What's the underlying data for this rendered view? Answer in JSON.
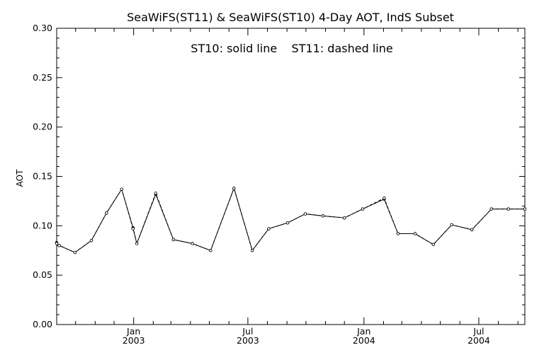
{
  "chart_data": {
    "type": "line",
    "title": "SeaWiFS(ST11) & SeaWiFS(ST10) 4-Day AOT, IndS Subset",
    "ylabel": "AOT",
    "xlabel": "",
    "annotation": "ST10: solid line    ST11: dashed line",
    "ylim": [
      0.0,
      0.3
    ],
    "yticks": [
      "0.00",
      "0.05",
      "0.10",
      "0.15",
      "0.20",
      "0.25",
      "0.30"
    ],
    "xlim": [
      "2002-09-01",
      "2004-09-12"
    ],
    "xticks": [
      {
        "date": "2003-01-01",
        "month": "Jan",
        "year": "2003"
      },
      {
        "date": "2003-07-01",
        "month": "Jul",
        "year": "2003"
      },
      {
        "date": "2004-01-01",
        "month": "Jan",
        "year": "2004"
      },
      {
        "date": "2004-07-01",
        "month": "Jul",
        "year": "2004"
      }
    ],
    "minor_xticks": [
      "2002-10-01",
      "2002-11-01",
      "2002-12-01",
      "2003-02-01",
      "2003-03-01",
      "2003-04-01",
      "2003-05-01",
      "2003-06-01",
      "2003-08-01",
      "2003-09-01",
      "2003-10-01",
      "2003-11-01",
      "2003-12-01",
      "2004-02-01",
      "2004-03-01",
      "2004-04-01",
      "2004-05-01",
      "2004-06-01",
      "2004-08-01",
      "2004-09-01"
    ],
    "grid": false,
    "series": [
      {
        "name": "ST10",
        "style": "solid",
        "color": "#000000",
        "x": [
          "2002-09-01",
          "2002-09-05",
          "2002-09-30",
          "2002-10-26",
          "2002-11-19",
          "2002-12-13",
          "2002-12-31",
          "2003-01-06",
          "2003-02-05",
          "2003-03-05",
          "2003-04-04",
          "2003-05-03",
          "2003-06-09",
          "2003-07-08",
          "2003-08-03",
          "2003-09-02",
          "2003-09-30",
          "2003-10-28",
          "2003-12-01",
          "2003-12-30",
          "2004-02-02",
          "2004-02-24",
          "2004-03-22",
          "2004-04-20",
          "2004-05-19",
          "2004-06-20",
          "2004-07-21",
          "2004-08-17",
          "2004-09-12"
        ],
        "y": [
          0.083,
          0.08,
          0.073,
          0.085,
          0.113,
          0.137,
          0.098,
          0.082,
          0.132,
          0.086,
          0.082,
          0.075,
          0.138,
          0.075,
          0.097,
          0.103,
          0.112,
          0.11,
          0.108,
          0.117,
          0.127,
          0.092,
          0.092,
          0.081,
          0.101,
          0.096,
          0.117,
          0.117,
          0.117
        ]
      },
      {
        "name": "ST11",
        "style": "dashed",
        "color": "#000000",
        "x": [
          "2002-09-01",
          "2002-09-05",
          "2002-09-30",
          "2002-10-26",
          "2002-11-19",
          "2002-12-13",
          "2002-12-31",
          "2003-01-06",
          "2003-02-05",
          "2003-03-05",
          "2003-04-04",
          "2003-05-03",
          "2003-06-09",
          "2003-07-08",
          "2003-08-03",
          "2003-09-02",
          "2003-09-30",
          "2003-10-28",
          "2003-12-01",
          "2003-12-30",
          "2004-02-02",
          "2004-02-24",
          "2004-03-22",
          "2004-04-20",
          "2004-05-19",
          "2004-06-20",
          "2004-07-21",
          "2004-08-17",
          "2004-09-12"
        ],
        "y": [
          0.082,
          0.08,
          0.073,
          0.085,
          0.113,
          0.137,
          0.097,
          0.082,
          0.133,
          0.086,
          0.082,
          0.075,
          0.138,
          0.075,
          0.097,
          0.103,
          0.112,
          0.11,
          0.108,
          0.117,
          0.128,
          0.092,
          0.092,
          0.081,
          0.101,
          0.096,
          0.117,
          0.117,
          0.117
        ]
      }
    ]
  }
}
